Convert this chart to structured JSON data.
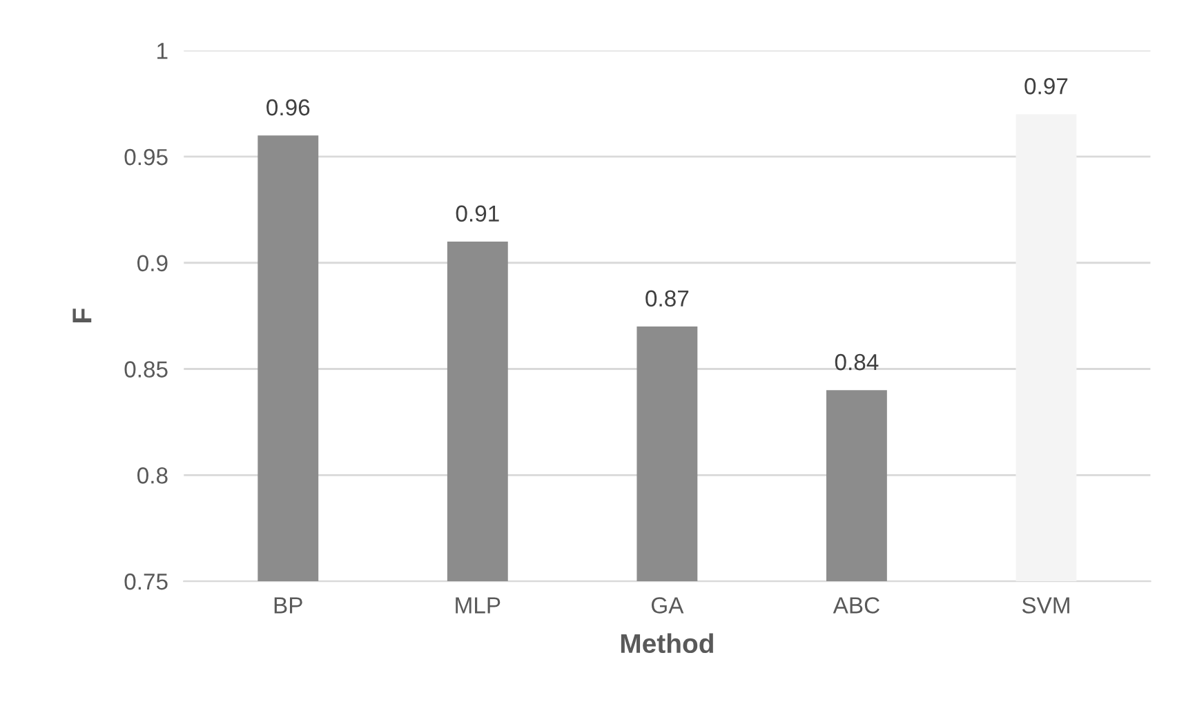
{
  "chart_data": {
    "type": "bar",
    "xlabel": "Method",
    "ylabel": "F",
    "categories": [
      "BP",
      "MLP",
      "GA",
      "ABC",
      "SVM"
    ],
    "values": [
      0.96,
      0.91,
      0.87,
      0.84,
      0.97
    ],
    "colors": [
      "#8c8c8c",
      "#8c8c8c",
      "#8c8c8c",
      "#8c8c8c",
      "#f4f4f4"
    ],
    "ylim": [
      0.75,
      1
    ],
    "yticks": [
      0.75,
      0.8,
      0.85,
      0.9,
      0.95,
      1
    ],
    "grid": "y",
    "data_labels": true
  }
}
